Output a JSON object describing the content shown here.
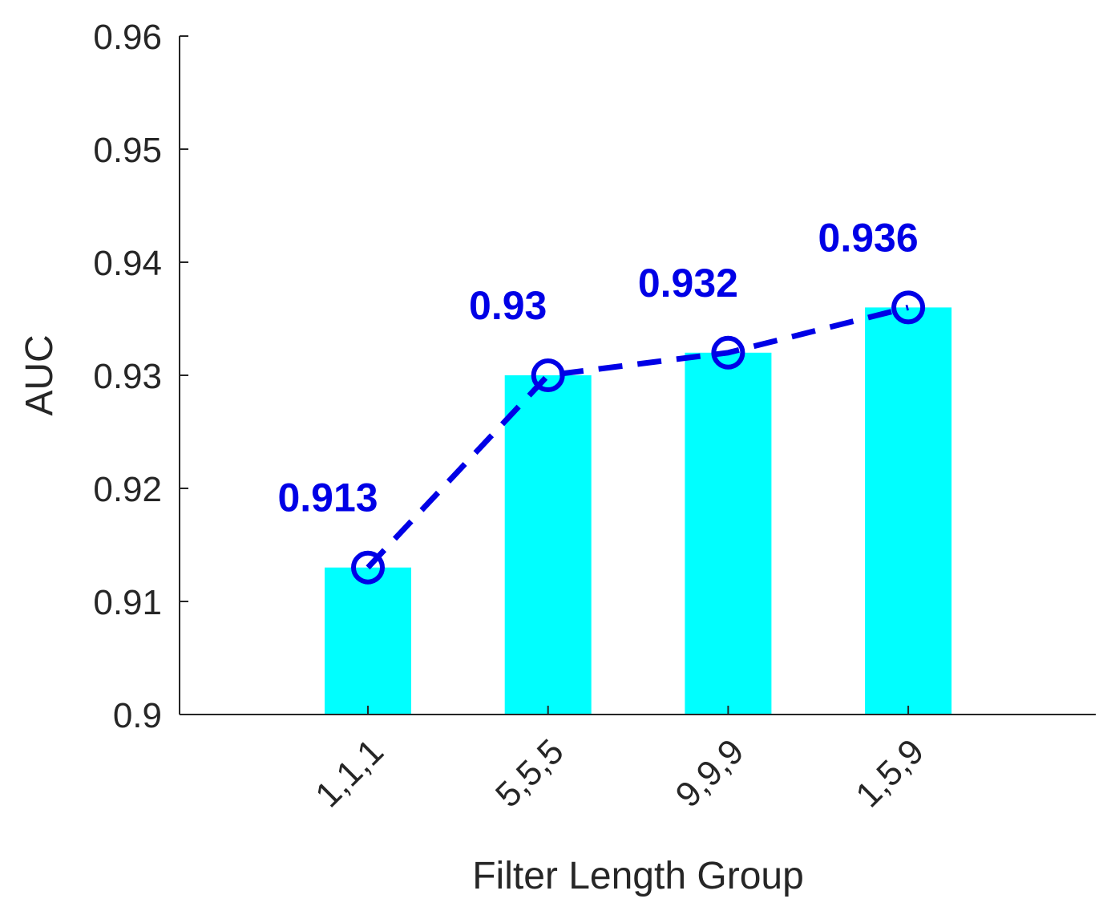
{
  "chart_data": {
    "type": "bar",
    "title": "",
    "xlabel": "Filter Length Group",
    "ylabel": "AUC",
    "categories": [
      "1,1,1",
      "5,5,5",
      "9,9,9",
      "1,5,9"
    ],
    "series": [
      {
        "kind": "bar",
        "values": [
          0.913,
          0.93,
          0.932,
          0.936
        ],
        "color": "#00FFFF"
      },
      {
        "kind": "line",
        "values": [
          0.913,
          0.93,
          0.932,
          0.936
        ],
        "color": "#0000E6",
        "line_style": "dashed",
        "marker": "circle"
      }
    ],
    "data_labels": [
      "0.913",
      "0.93",
      "0.932",
      "0.936"
    ],
    "ylim": [
      0.9,
      0.96
    ],
    "yticks": [
      "0.9",
      "0.91",
      "0.92",
      "0.93",
      "0.94",
      "0.95",
      "0.96"
    ],
    "grid": false,
    "legend": "none"
  }
}
